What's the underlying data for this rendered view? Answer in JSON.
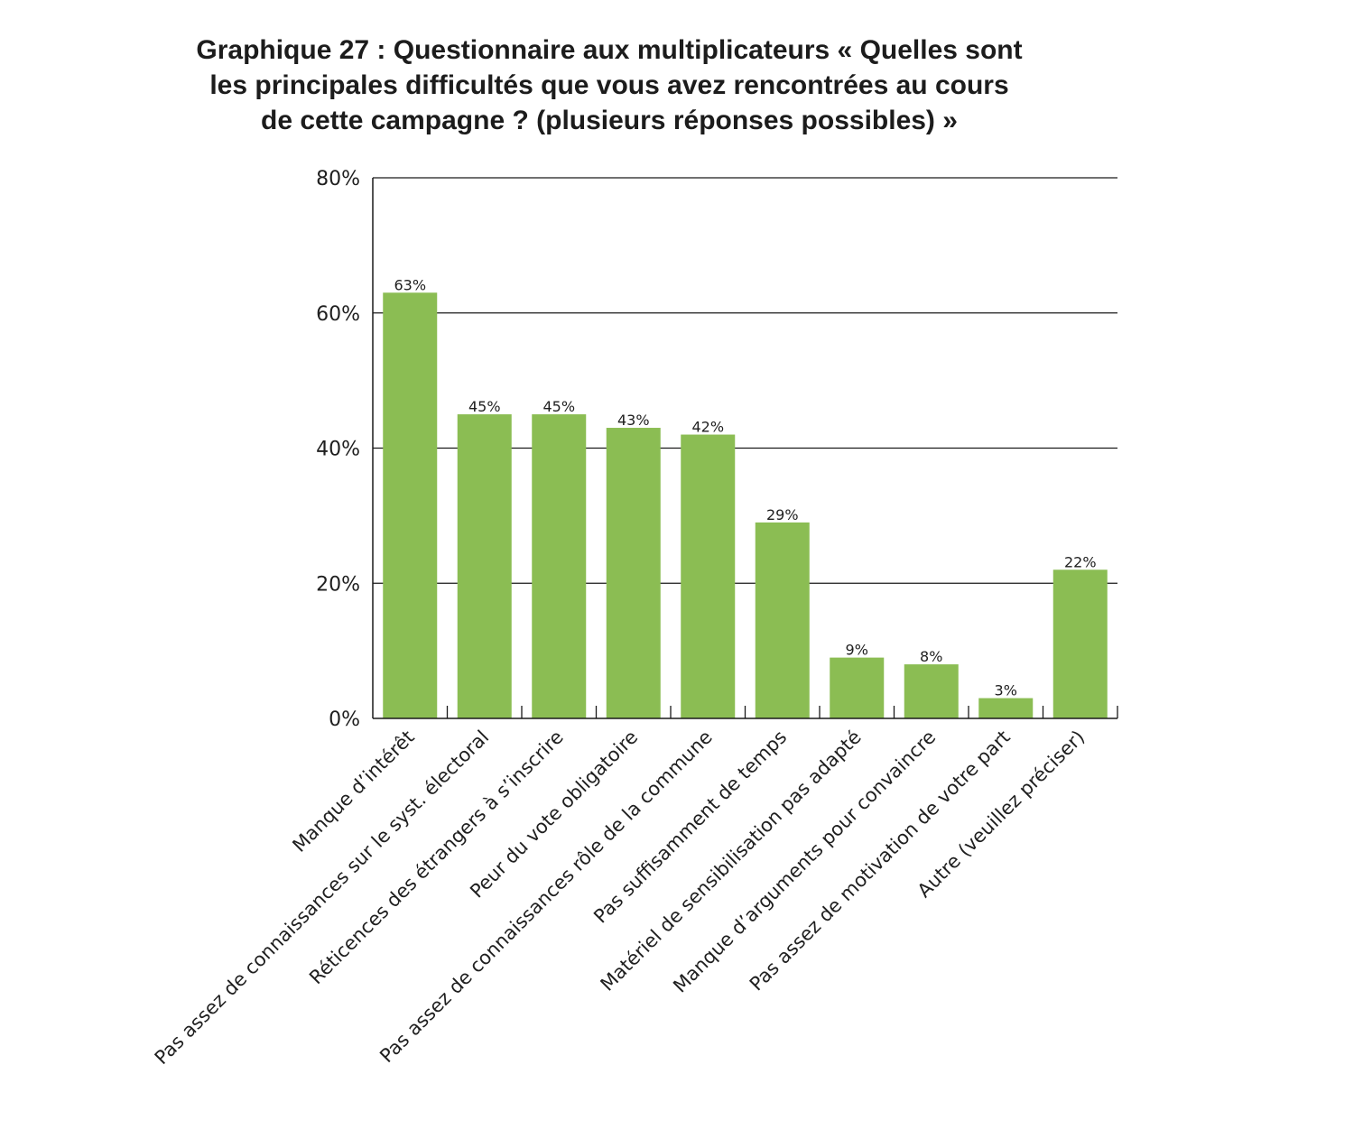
{
  "title_lines": [
    "Graphique 27 : Questionnaire aux multiplicateurs « Quelles sont",
    "les principales difficultés que vous avez rencontrées au cours",
    "de cette campagne ? (plusieurs réponses possibles) »"
  ],
  "chart_data": {
    "type": "bar",
    "title": "Graphique 27 : Questionnaire aux multiplicateurs « Quelles sont les principales difficultés que vous avez rencontrées au cours de cette campagne ? (plusieurs réponses possibles) »",
    "categories": [
      "Manque d’intérêt",
      "Pas assez de connaissances sur le syst. électoral",
      "Réticences des étrangers à s’inscrire",
      "Peur du vote obligatoire",
      "Pas assez de connaissances rôle de la commune",
      "Pas suffisamment de temps",
      "Matériel de sensibilisation pas adapté",
      "Manque d’arguments pour convaincre",
      "Pas assez de motivation de votre part",
      "Autre (veuillez préciser)"
    ],
    "values": [
      63,
      45,
      45,
      43,
      42,
      29,
      9,
      8,
      3,
      22
    ],
    "value_labels": [
      "63%",
      "45%",
      "45%",
      "43%",
      "42%",
      "29%",
      "9%",
      "8%",
      "3%",
      "22%"
    ],
    "yticks": [
      0,
      20,
      40,
      60,
      80
    ],
    "ytick_labels": [
      "0%",
      "20%",
      "40%",
      "60%",
      "80%"
    ],
    "ylim": [
      0,
      80
    ],
    "xlabel": "",
    "ylabel": "",
    "grid": true,
    "bar_color": "#8bbd53",
    "axis_color": "#1a1a1a"
  }
}
